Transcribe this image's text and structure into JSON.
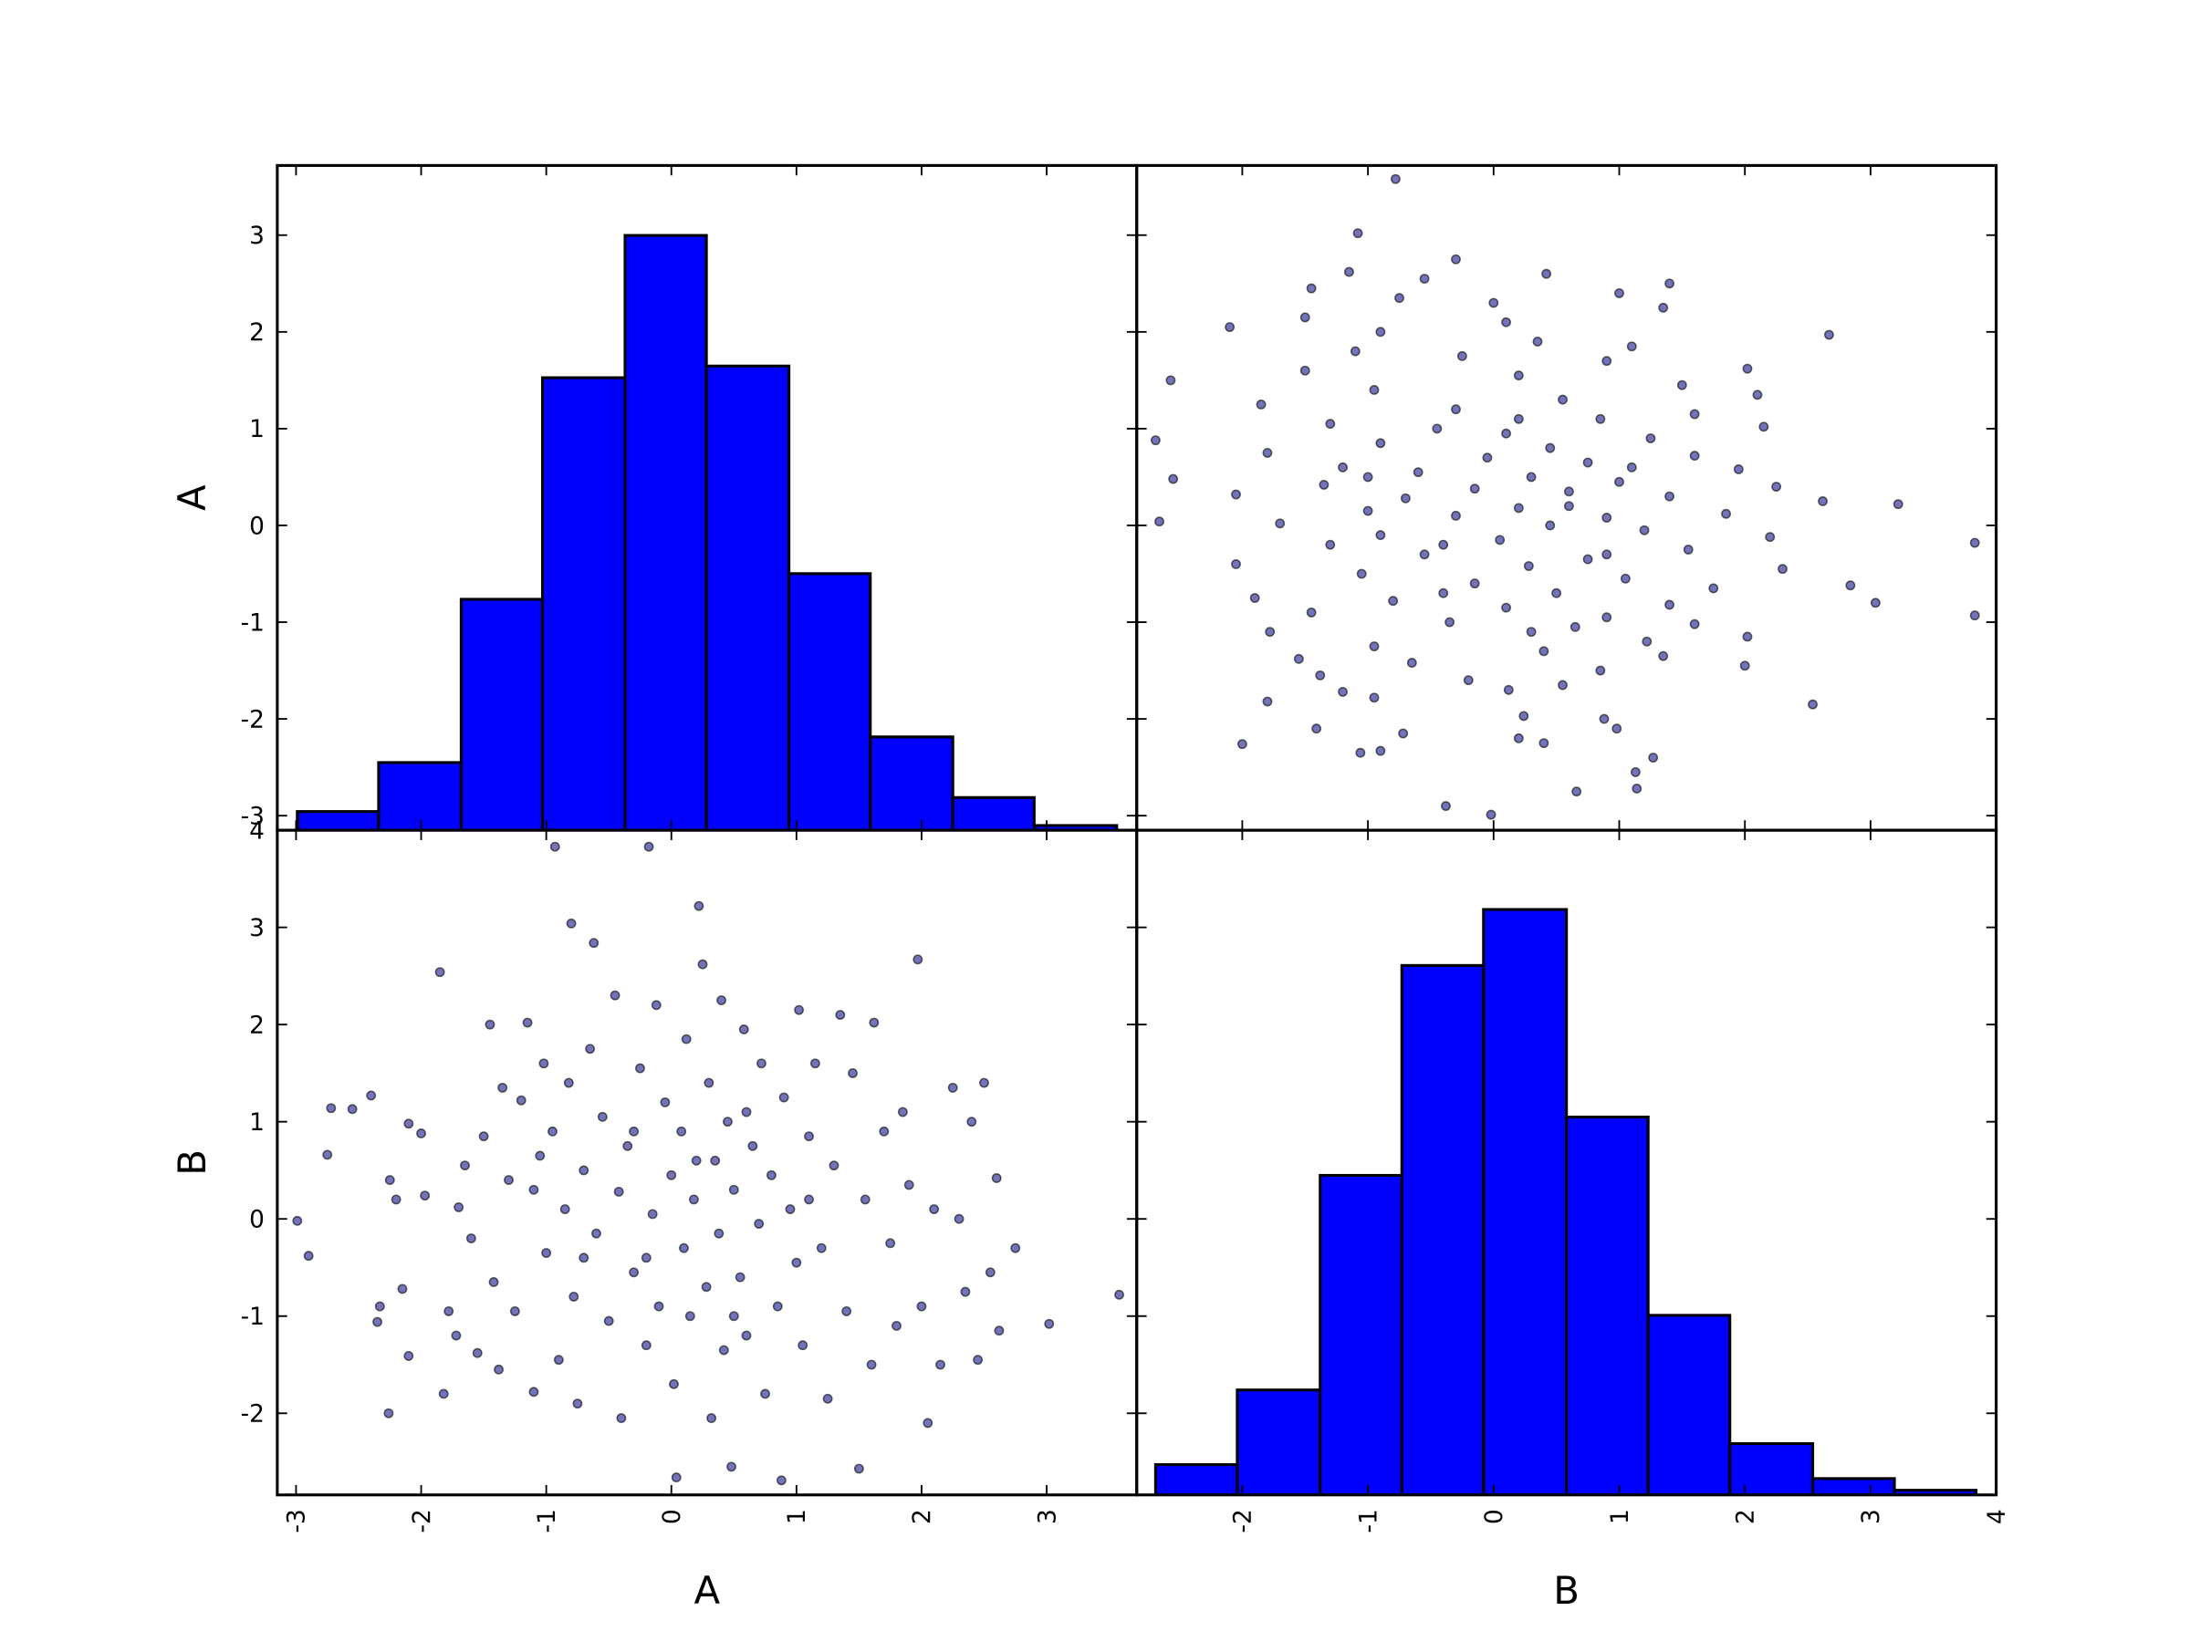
{
  "chart_data": {
    "type": "scatter_matrix",
    "color": "#0000ff",
    "point_color": "#000080",
    "point_alpha": 0.55,
    "variables": [
      {
        "name": "A",
        "lim": [
          -3.15,
          3.72
        ],
        "ticks": [
          -3,
          -2,
          -1,
          0,
          1,
          2,
          3
        ],
        "hist": {
          "bins": [
            -2.99,
            -2.34,
            -1.68,
            -1.03,
            -0.37,
            0.28,
            0.94,
            1.59,
            2.25,
            2.9,
            3.56
          ],
          "counts": [
            8,
            29,
            99,
            194,
            255,
            199,
            110,
            40,
            14,
            2
          ],
          "ylim": [
            0,
            285
          ]
        },
        "values": [
          -2.99,
          -2.9,
          -2.75,
          -2.72,
          -2.55,
          -2.4,
          -2.35,
          -2.33,
          -2.26,
          -2.25,
          -2.2,
          -2.15,
          -2.1,
          -2.1,
          -2.0,
          -1.97,
          -1.85,
          -1.82,
          -1.78,
          -1.72,
          -1.7,
          -1.65,
          -1.6,
          -1.55,
          -1.5,
          -1.45,
          -1.42,
          -1.38,
          -1.35,
          -1.3,
          -1.25,
          -1.2,
          -1.15,
          -1.1,
          -1.05,
          -1.02,
          -1.0,
          -0.95,
          -0.93,
          -0.9,
          -0.85,
          -0.82,
          -0.8,
          -0.78,
          -0.75,
          -0.7,
          -0.65,
          -0.62,
          -0.6,
          -0.55,
          -0.5,
          -0.45,
          -0.42,
          -0.4,
          -0.35,
          -0.3,
          -0.25,
          -0.2,
          -0.18,
          -0.15,
          -0.12,
          -0.1,
          -0.05,
          0.0,
          0.02,
          0.04,
          0.08,
          0.1,
          0.12,
          0.15,
          0.18,
          0.22,
          0.25,
          0.28,
          0.3,
          0.32,
          0.35,
          0.38,
          0.4,
          0.42,
          0.45,
          0.48,
          0.5,
          0.55,
          0.58,
          0.6,
          0.65,
          0.7,
          0.72,
          0.75,
          0.8,
          0.85,
          0.88,
          0.9,
          0.95,
          1.0,
          1.02,
          1.05,
          1.1,
          1.15,
          1.2,
          1.25,
          1.3,
          1.35,
          1.4,
          1.45,
          1.5,
          1.55,
          1.6,
          1.62,
          1.7,
          1.75,
          1.8,
          1.85,
          1.9,
          1.97,
          2.0,
          2.05,
          2.1,
          2.15,
          2.25,
          2.3,
          2.35,
          2.4,
          2.45,
          2.5,
          2.55,
          2.6,
          2.62,
          2.75,
          3.02,
          3.58,
          -0.3,
          0.5,
          -0.7,
          0.2,
          -1.1,
          1.1,
          -0.2,
          0.6
        ]
      },
      {
        "name": "B",
        "lim": [
          -2.84,
          4.0
        ],
        "ticks": [
          -2,
          -1,
          0,
          1,
          2,
          3,
          4
        ],
        "hist": {
          "bins": [
            -2.69,
            -2.04,
            -1.38,
            -0.73,
            -0.08,
            0.58,
            1.23,
            1.88,
            2.54,
            3.19,
            3.84
          ],
          "counts": [
            13,
            45,
            137,
            227,
            251,
            162,
            77,
            22,
            7,
            2
          ],
          "ylim": [
            0,
            285
          ]
        },
        "values": [
          -0.02,
          -0.38,
          0.66,
          1.14,
          1.13,
          1.27,
          -1.06,
          -0.9,
          -2.0,
          0.4,
          0.2,
          -0.72,
          -1.41,
          0.98,
          0.88,
          0.24,
          2.54,
          -1.8,
          -0.95,
          -1.2,
          0.12,
          0.55,
          -0.2,
          -1.38,
          0.85,
          2.0,
          -0.65,
          -1.55,
          1.35,
          0.4,
          -0.95,
          1.22,
          2.02,
          -1.78,
          0.65,
          1.6,
          -0.35,
          0.9,
          3.83,
          -1.45,
          0.1,
          1.4,
          3.04,
          -0.8,
          -1.9,
          0.5,
          1.75,
          2.84,
          -0.15,
          1.05,
          -1.05,
          2.3,
          0.28,
          -2.05,
          0.75,
          -0.55,
          1.55,
          -1.3,
          3.83,
          0.05,
          2.2,
          -0.9,
          1.2,
          0.45,
          -1.7,
          -2.66,
          0.9,
          -0.3,
          1.85,
          -1.0,
          0.2,
          3.22,
          2.62,
          -0.7,
          1.4,
          -2.05,
          0.6,
          -0.15,
          2.25,
          -1.35,
          1.0,
          -2.55,
          0.3,
          -0.6,
          1.95,
          -1.2,
          0.75,
          -0.05,
          1.6,
          -1.8,
          0.45,
          -0.9,
          -2.69,
          1.25,
          0.1,
          -0.45,
          2.15,
          -1.3,
          0.85,
          1.6,
          -0.3,
          -1.85,
          0.55,
          2.1,
          -0.95,
          1.5,
          -2.57,
          0.2,
          -1.5,
          2.02,
          0.9,
          -0.25,
          -1.1,
          1.1,
          0.35,
          2.67,
          -0.9,
          -2.1,
          0.1,
          -1.5,
          1.35,
          0.0,
          -0.75,
          1.0,
          -1.45,
          1.4,
          -0.55,
          0.42,
          -1.15,
          -0.3,
          -1.08,
          -0.78,
          0.9,
          -1.0,
          -0.4,
          0.6,
          0.3,
          0.2,
          -0.4,
          1.1
        ]
      }
    ]
  }
}
